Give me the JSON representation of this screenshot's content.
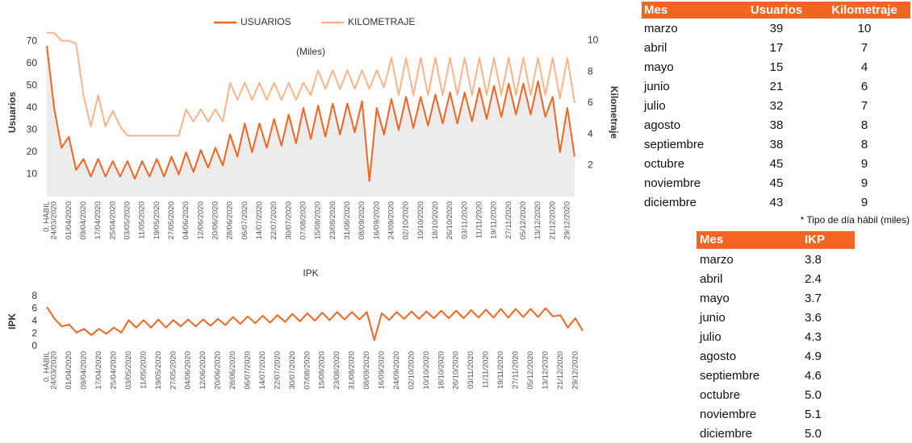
{
  "chart_data": [
    {
      "type": "line",
      "title": "(Miles)",
      "ylabel": "Usuarios",
      "y2label": "Kilometraje",
      "legend": "top",
      "grid": false,
      "categories": [
        "0. HÁBIL",
        "24/03/2020",
        null,
        "01/04/2020",
        null,
        "09/04/2020",
        null,
        "17/04/2020",
        null,
        "25/04/2020",
        null,
        "03/05/2020",
        null,
        "11/05/2020",
        null,
        "19/05/2020",
        null,
        "27/05/2020",
        null,
        "04/06/2020",
        null,
        "12/06/2020",
        null,
        "20/06/2020",
        null,
        "28/06/2020",
        null,
        "06/07/2020",
        null,
        "14/07/2020",
        null,
        "22/07/2020",
        null,
        "30/07/2020",
        null,
        "07/08/2020",
        null,
        "15/08/2020",
        null,
        "23/08/2020",
        null,
        "31/08/2020",
        null,
        "08/09/2020",
        null,
        "16/09/2020",
        null,
        "24/09/2020",
        null,
        "02/10/2020",
        null,
        "10/10/2020",
        null,
        "18/10/2020",
        null,
        "26/10/2020",
        null,
        "03/11/2020",
        null,
        "11/11/2020",
        null,
        "19/11/2020",
        null,
        "27/11/2020",
        null,
        "05/12/2020",
        null,
        "13/12/2020",
        null,
        "21/12/2020",
        null,
        "29/12/2020",
        null
      ],
      "ylim": [
        0,
        76
      ],
      "yticks": [
        10,
        20,
        30,
        40,
        50,
        60,
        70
      ],
      "y2lim": [
        0,
        10.8
      ],
      "y2ticks": [
        2,
        4,
        6,
        8,
        10
      ],
      "series": [
        {
          "name": "USUARIOS",
          "color": "#f26522",
          "fill": "#ececec",
          "values": [
            68,
            40,
            22,
            27,
            12,
            17,
            9,
            17,
            9,
            16,
            9,
            16,
            8,
            16,
            9,
            17,
            9,
            18,
            10,
            20,
            11,
            21,
            13,
            22,
            14,
            28,
            18,
            33,
            20,
            33,
            22,
            35,
            23,
            37,
            24,
            40,
            26,
            41,
            27,
            42,
            28,
            42,
            29,
            43,
            7,
            40,
            28,
            44,
            30,
            45,
            31,
            45,
            32,
            46,
            33,
            47,
            33,
            47,
            34,
            49,
            35,
            50,
            36,
            51,
            37,
            51,
            37,
            52,
            36,
            45,
            20,
            40,
            18
          ]
        },
        {
          "name": "KILOMETRAJE",
          "color": "#f9b48a",
          "axis": "y2",
          "values": [
            10.5,
            10.5,
            10,
            10,
            9.8,
            6.5,
            4.5,
            6.5,
            4.5,
            5.5,
            4.5,
            3.9,
            3.9,
            3.9,
            3.9,
            3.9,
            3.9,
            3.9,
            3.9,
            5.6,
            4.8,
            5.6,
            4.8,
            5.6,
            4.8,
            7.3,
            6.2,
            7.3,
            6.2,
            7.3,
            6.2,
            7.3,
            6.2,
            7.3,
            6.2,
            7.3,
            6.5,
            8.1,
            6.9,
            8.1,
            6.9,
            8.1,
            6.9,
            8.1,
            6.9,
            8.1,
            7.0,
            8.9,
            6.5,
            8.9,
            6.5,
            8.9,
            6.5,
            8.9,
            6.5,
            8.9,
            6.5,
            8.9,
            6.5,
            8.9,
            6.5,
            8.9,
            6.5,
            8.9,
            6.5,
            8.9,
            6.5,
            8.9,
            6.5,
            8.9,
            6.3,
            8.9,
            6.0
          ]
        }
      ]
    },
    {
      "type": "line",
      "title": "IPK",
      "ylabel": "IPK",
      "grid": false,
      "categories": [
        "0. HÁBIL",
        "24/03/2020",
        null,
        "01/04/2020",
        null,
        "09/04/2020",
        null,
        "17/04/2020",
        null,
        "25/04/2020",
        null,
        "03/05/2020",
        null,
        "11/05/2020",
        null,
        "19/05/2020",
        null,
        "27/05/2020",
        null,
        "04/06/2020",
        null,
        "12/06/2020",
        null,
        "20/06/2020",
        null,
        "28/06/2020",
        null,
        "06/07/2020",
        null,
        "14/07/2020",
        null,
        "22/07/2020",
        null,
        "30/07/2020",
        null,
        "07/08/2020",
        null,
        "15/08/2020",
        null,
        "23/08/2020",
        null,
        "31/08/2020",
        null,
        "08/09/2020",
        null,
        "16/09/2020",
        null,
        "24/09/2020",
        null,
        "02/10/2020",
        null,
        "10/10/2020",
        null,
        "18/10/2020",
        null,
        "26/10/2020",
        null,
        "03/11/2020",
        null,
        "11/11/2020",
        null,
        "19/11/2020",
        null,
        "27/11/2020",
        null,
        "05/12/2020",
        null,
        "13/12/2020",
        null,
        "21/12/2020",
        null,
        "29/12/2020",
        null
      ],
      "ylim": [
        0,
        8
      ],
      "yticks": [
        0,
        2,
        4,
        6,
        8
      ],
      "series": [
        {
          "name": "IPK",
          "color": "#f26522",
          "values": [
            6.3,
            4.5,
            3.2,
            3.5,
            2.2,
            2.8,
            1.8,
            2.8,
            2.0,
            3.0,
            2.2,
            4.2,
            3.0,
            4.2,
            3.0,
            4.3,
            3.0,
            4.2,
            3.2,
            4.3,
            3.2,
            4.3,
            3.3,
            4.4,
            3.4,
            4.7,
            3.6,
            4.8,
            3.7,
            4.9,
            3.8,
            5.0,
            3.9,
            5.2,
            4.0,
            5.3,
            4.1,
            5.4,
            4.2,
            5.5,
            4.3,
            5.5,
            4.3,
            5.5,
            1.0,
            5.3,
            4.2,
            5.5,
            4.4,
            5.6,
            4.4,
            5.6,
            4.5,
            5.7,
            4.5,
            5.7,
            4.5,
            5.8,
            4.6,
            5.9,
            4.6,
            6.0,
            4.6,
            6.0,
            4.7,
            6.0,
            4.7,
            6.1,
            4.8,
            5.0,
            3.0,
            4.5,
            2.5
          ]
        }
      ]
    }
  ],
  "table1": {
    "header": [
      "Mes",
      "Usuarios",
      "Kilometraje"
    ],
    "rows": [
      [
        "marzo",
        "39",
        "10"
      ],
      [
        "abril",
        "17",
        "7"
      ],
      [
        "mayo",
        "15",
        "4"
      ],
      [
        "junio",
        "21",
        "6"
      ],
      [
        "julio",
        "32",
        "7"
      ],
      [
        "agosto",
        "38",
        "8"
      ],
      [
        "septiembre",
        "38",
        "8"
      ],
      [
        "octubre",
        "45",
        "9"
      ],
      [
        "noviembre",
        "45",
        "9"
      ],
      [
        "diciembre",
        "43",
        "9"
      ]
    ],
    "note": "* Tipo de día hábil (miles)"
  },
  "table2": {
    "header": [
      "Mes",
      "IKP"
    ],
    "rows": [
      [
        "marzo",
        "3.8"
      ],
      [
        "abril",
        "2.4"
      ],
      [
        "mayo",
        "3.7"
      ],
      [
        "junio",
        "3.6"
      ],
      [
        "julio",
        "4.3"
      ],
      [
        "agosto",
        "4.9"
      ],
      [
        "septiembre",
        "4.6"
      ],
      [
        "octubre",
        "5.0"
      ],
      [
        "noviembre",
        "5.1"
      ],
      [
        "diciembre",
        "5.0"
      ]
    ]
  }
}
